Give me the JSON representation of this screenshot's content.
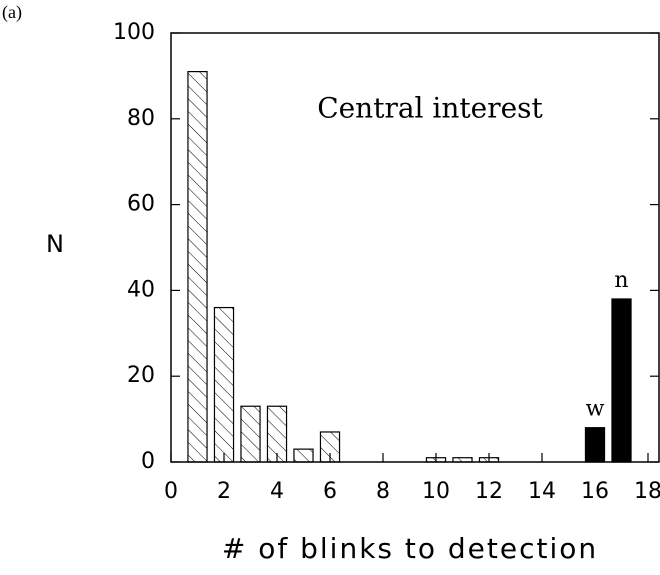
{
  "panel_label": "(a)",
  "chart_data": {
    "type": "bar",
    "title": "Central interest",
    "xlabel": "# of blinks to detection",
    "ylabel": "N",
    "series": [
      {
        "x": [
          1,
          2,
          3,
          4,
          5,
          6,
          10,
          11,
          12
        ],
        "values": [
          91,
          36,
          13,
          13,
          3,
          7,
          1,
          1,
          1
        ],
        "color": "#000000",
        "pattern": "hatch"
      },
      {
        "x": [
          16,
          17
        ],
        "values": [
          8,
          38
        ],
        "labels": [
          "w",
          "n"
        ],
        "color": "#000000",
        "pattern": "solid"
      }
    ],
    "xlim": [
      0,
      18
    ],
    "ylim": [
      0,
      100
    ],
    "xticks": [
      0,
      2,
      4,
      6,
      8,
      10,
      12,
      14,
      16,
      18
    ],
    "yticks": [
      0,
      20,
      40,
      60,
      80,
      100
    ]
  }
}
